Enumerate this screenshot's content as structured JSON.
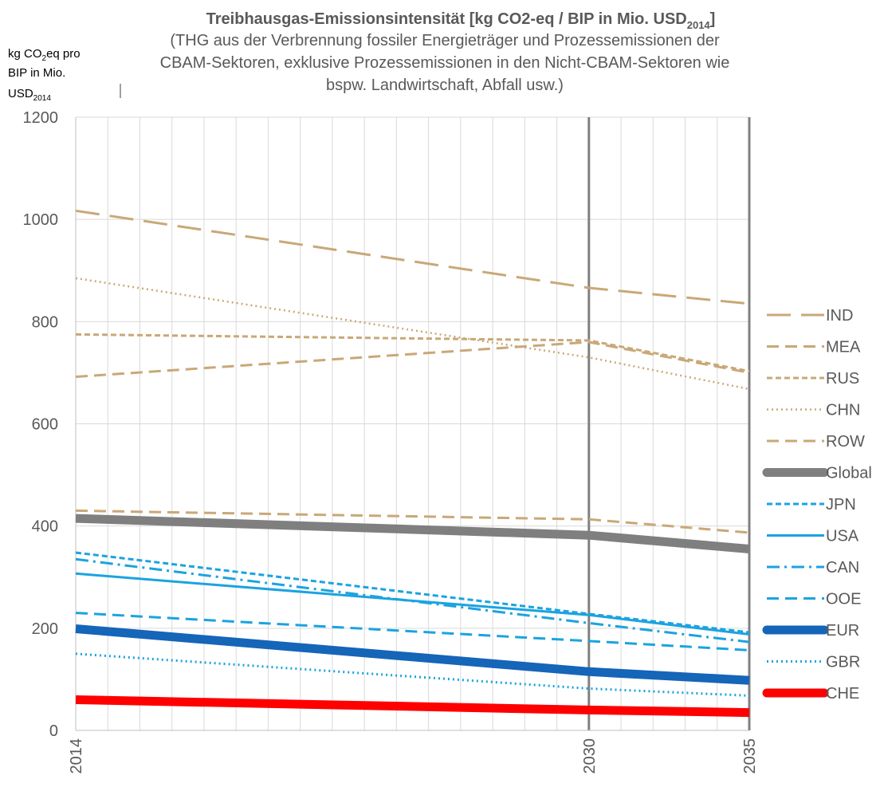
{
  "chart_data": {
    "type": "line",
    "title": "Treibhausgas-Emissionsintensität [kg CO2-eq / BIP in Mio. USD",
    "title_sub": "2014",
    "title_close": "]",
    "subtitle_lines": [
      "(THG aus der Verbrennung fossiler Energieträger und Prozessemissionen der",
      "CBAM-Sektoren, exklusive Prozessemissionen in den Nicht-CBAM-Sektoren wie",
      "bspw. Landwirtschaft, Abfall usw.)"
    ],
    "ylabel_lines": [
      "kg CO",
      "2",
      "eq pro",
      "BIP in Mio.",
      "USD",
      "2014"
    ],
    "ylim": [
      0,
      1200
    ],
    "y_ticks": [
      "0",
      "200",
      "400",
      "600",
      "800",
      "1000",
      "1200"
    ],
    "x_range": [
      2014,
      2035
    ],
    "x_tick_labels": [
      {
        "year": 2014,
        "label": "2014"
      },
      {
        "year": 2030,
        "label": "2030"
      },
      {
        "year": 2035,
        "label": "2035"
      }
    ],
    "grid": true,
    "reference_lines_x": [
      2030,
      2035
    ],
    "legend_position": "right",
    "series": [
      {
        "name": "IND",
        "color": "#C9A877",
        "dash": "long-dash",
        "width": 3,
        "points": [
          [
            2014,
            1017
          ],
          [
            2030,
            866
          ],
          [
            2035,
            835
          ]
        ]
      },
      {
        "name": "MEA",
        "color": "#C9A877",
        "dash": "dash",
        "width": 3,
        "points": [
          [
            2014,
            692
          ],
          [
            2030,
            760
          ],
          [
            2035,
            700
          ]
        ]
      },
      {
        "name": "RUS",
        "color": "#C9A877",
        "dash": "short-dash",
        "width": 3,
        "points": [
          [
            2014,
            775
          ],
          [
            2030,
            763
          ],
          [
            2035,
            703
          ]
        ]
      },
      {
        "name": "CHN",
        "color": "#C9A877",
        "dash": "dot",
        "width": 2.5,
        "points": [
          [
            2014,
            885
          ],
          [
            2030,
            730
          ],
          [
            2035,
            668
          ]
        ]
      },
      {
        "name": "ROW",
        "color": "#C9A877",
        "dash": "dash",
        "width": 3,
        "points": [
          [
            2014,
            430
          ],
          [
            2030,
            413
          ],
          [
            2035,
            387
          ]
        ]
      },
      {
        "name": "Global",
        "color": "#7F7F7F",
        "dash": "solid",
        "width": 11,
        "points": [
          [
            2014,
            415
          ],
          [
            2030,
            382
          ],
          [
            2035,
            355
          ]
        ]
      },
      {
        "name": "JPN",
        "color": "#1BA3E0",
        "dash": "short-dash",
        "width": 3,
        "points": [
          [
            2014,
            348
          ],
          [
            2030,
            228
          ],
          [
            2035,
            192
          ]
        ]
      },
      {
        "name": "USA",
        "color": "#1BA3E0",
        "dash": "solid",
        "width": 3,
        "points": [
          [
            2014,
            307
          ],
          [
            2030,
            226
          ],
          [
            2035,
            188
          ]
        ]
      },
      {
        "name": "CAN",
        "color": "#1BA3E0",
        "dash": "dash-dot",
        "width": 3,
        "points": [
          [
            2014,
            335
          ],
          [
            2030,
            210
          ],
          [
            2035,
            173
          ]
        ]
      },
      {
        "name": "OOE",
        "color": "#1BA3E0",
        "dash": "dash",
        "width": 3,
        "points": [
          [
            2014,
            230
          ],
          [
            2030,
            175
          ],
          [
            2035,
            157
          ]
        ]
      },
      {
        "name": "EUR",
        "color": "#1565B8",
        "dash": "solid",
        "width": 11,
        "points": [
          [
            2014,
            199
          ],
          [
            2030,
            115
          ],
          [
            2035,
            98
          ]
        ]
      },
      {
        "name": "GBR",
        "color": "#1BA3E0",
        "dash": "dot",
        "width": 3,
        "points": [
          [
            2014,
            150
          ],
          [
            2030,
            82
          ],
          [
            2035,
            68
          ]
        ]
      },
      {
        "name": "CHE",
        "color": "#FF0000",
        "dash": "solid",
        "width": 11,
        "points": [
          [
            2014,
            60
          ],
          [
            2030,
            40
          ],
          [
            2035,
            35
          ]
        ]
      }
    ]
  }
}
